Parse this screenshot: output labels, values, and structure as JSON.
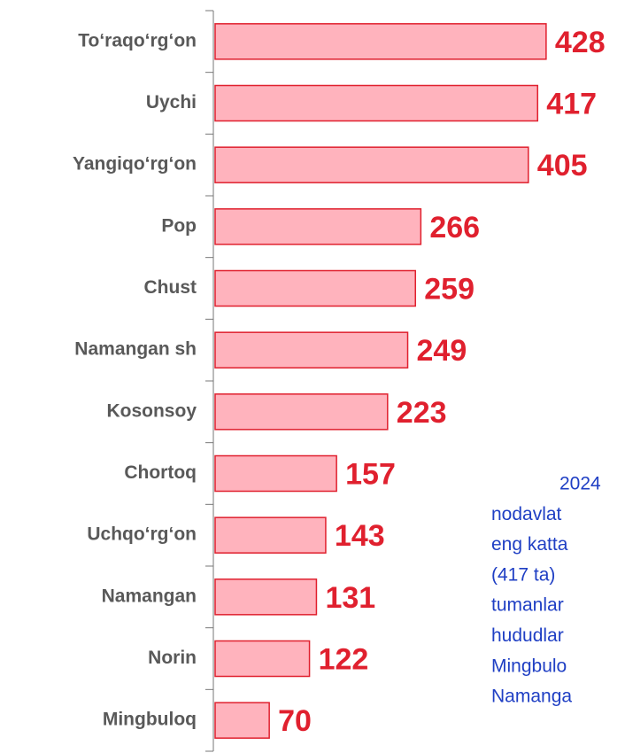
{
  "chart_data": {
    "type": "barh",
    "categories": [
      "To‘raqo‘rg‘on",
      "Uychi",
      "Yangiqo‘rg‘on",
      "Pop",
      "Chust",
      "Namangan sh",
      "Kosonsoy",
      "Chortoq",
      "Uchqo‘rg‘on",
      "Namangan",
      "Norin",
      "Mingbuloq"
    ],
    "values": [
      428,
      417,
      405,
      266,
      259,
      249,
      223,
      157,
      143,
      131,
      122,
      70
    ],
    "color": "#ffb3bd",
    "edge_color": "#e0202e",
    "label_color": "#e0202e",
    "xlim": [
      0,
      530
    ],
    "annotations": [
      "2024",
      "nodavlat",
      "eng katta",
      "(417 ta)",
      "tumanlar",
      "hududlar",
      "Mingbulo",
      "Namanga"
    ],
    "annotation_color": "#1f3fc4"
  }
}
